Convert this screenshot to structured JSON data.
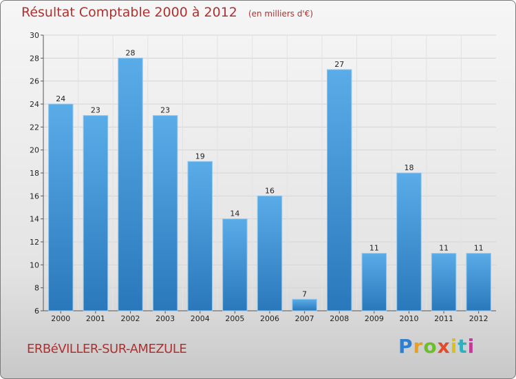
{
  "title": "Résultat Comptable 2000 à 2012",
  "subtitle": "(en milliers d'€)",
  "place": "ERBéVILLER-SUR-AMEZULE",
  "logo": {
    "letters": [
      "P",
      "r",
      "o",
      "x",
      "i",
      "t",
      "i"
    ]
  },
  "colors": {
    "bar_top": "#5aace8",
    "bar_bottom": "#2a78bb",
    "title": "#b03030"
  },
  "chart_data": {
    "type": "bar",
    "title": "Résultat Comptable 2000 à 2012",
    "subtitle": "(en milliers d'€)",
    "xlabel": "",
    "ylabel": "",
    "categories": [
      "2000",
      "2001",
      "2002",
      "2003",
      "2004",
      "2005",
      "2006",
      "2007",
      "2008",
      "2009",
      "2010",
      "2011",
      "2012"
    ],
    "values": [
      24,
      23,
      28,
      23,
      19,
      14,
      16,
      7,
      27,
      11,
      18,
      11,
      11
    ],
    "ylim": [
      6,
      30
    ],
    "yticks": [
      6,
      8,
      10,
      12,
      14,
      16,
      18,
      20,
      22,
      24,
      26,
      28,
      30
    ],
    "grid": true
  }
}
